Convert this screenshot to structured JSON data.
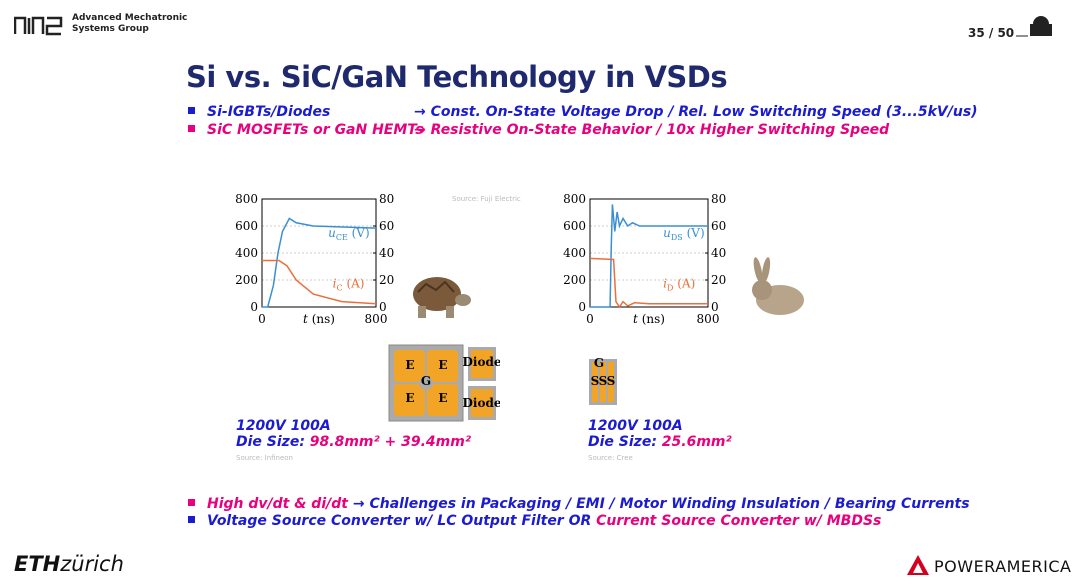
{
  "header": {
    "group": [
      "Advanced Mechatronic",
      "Systems Group"
    ],
    "page": "35 / 50"
  },
  "title": "Si vs. SiC/GaN Technology in VSDs",
  "bullets_top": [
    {
      "left": "Si-IGBTs/Diodes",
      "right": "→ Const. On-State Voltage Drop / Rel. Low Switching Speed (3...5kV/us)"
    },
    {
      "left": "SiC MOSFETs or GaN HEMTs",
      "right": "→ Resistive On-State Behavior / 10x Higher Switching Speed"
    }
  ],
  "charts": [
    {
      "xlim": [
        0,
        800
      ],
      "xticks": [
        0,
        800
      ],
      "ylim": [
        0,
        800
      ],
      "yticks": [
        0,
        200,
        400,
        600,
        800
      ],
      "y2lim": [
        0,
        80
      ],
      "y2ticks": [
        0,
        20,
        40,
        60,
        80
      ],
      "xlabel": [
        "t",
        " (ns)"
      ],
      "labels": [
        {
          "base": "u",
          "sub": "CE",
          "unit": " (V)"
        },
        {
          "base": "i",
          "sub": "C",
          "unit": " (A)"
        }
      ],
      "source": "Source: Fuji Electric"
    },
    {
      "xlim": [
        0,
        800
      ],
      "xticks": [
        0,
        800
      ],
      "ylim": [
        0,
        800
      ],
      "yticks": [
        0,
        200,
        400,
        600,
        800
      ],
      "y2lim": [
        0,
        80
      ],
      "y2ticks": [
        0,
        20,
        40,
        60,
        80
      ],
      "xlabel": [
        "t",
        " (ns)"
      ],
      "labels": [
        {
          "base": "u",
          "sub": "DS",
          "unit": " (V)"
        },
        {
          "base": "i",
          "sub": "D",
          "unit": " (A)"
        }
      ]
    }
  ],
  "chips_left": [
    "E",
    "E",
    "G",
    "E",
    "E",
    "Diode",
    "Diode"
  ],
  "chips_right": [
    "G",
    "S",
    "S",
    "S"
  ],
  "captions": [
    {
      "rating": "1200V  100A",
      "label": "Die Size:",
      "value": "98.8mm² + 39.4mm²",
      "source": "Source: Infineon"
    },
    {
      "rating": "1200V  100A",
      "label": "Die Size:",
      "value": "25.6mm²",
      "source": "Source: Cree"
    }
  ],
  "bullets_bottom": [
    {
      "left": "High dv/dt  &  di/dt",
      "right": "→ Challenges in Packaging / EMI / Motor Winding Insulation / Bearing Currents"
    },
    {
      "left": "Voltage Source Converter w/ LC Output Filter  OR",
      "right": "Current Source Converter w/ MBDSs"
    }
  ],
  "footer": {
    "eth": [
      "ETH",
      "zürich"
    ],
    "power": [
      "POWER",
      "AMERICA"
    ]
  }
}
